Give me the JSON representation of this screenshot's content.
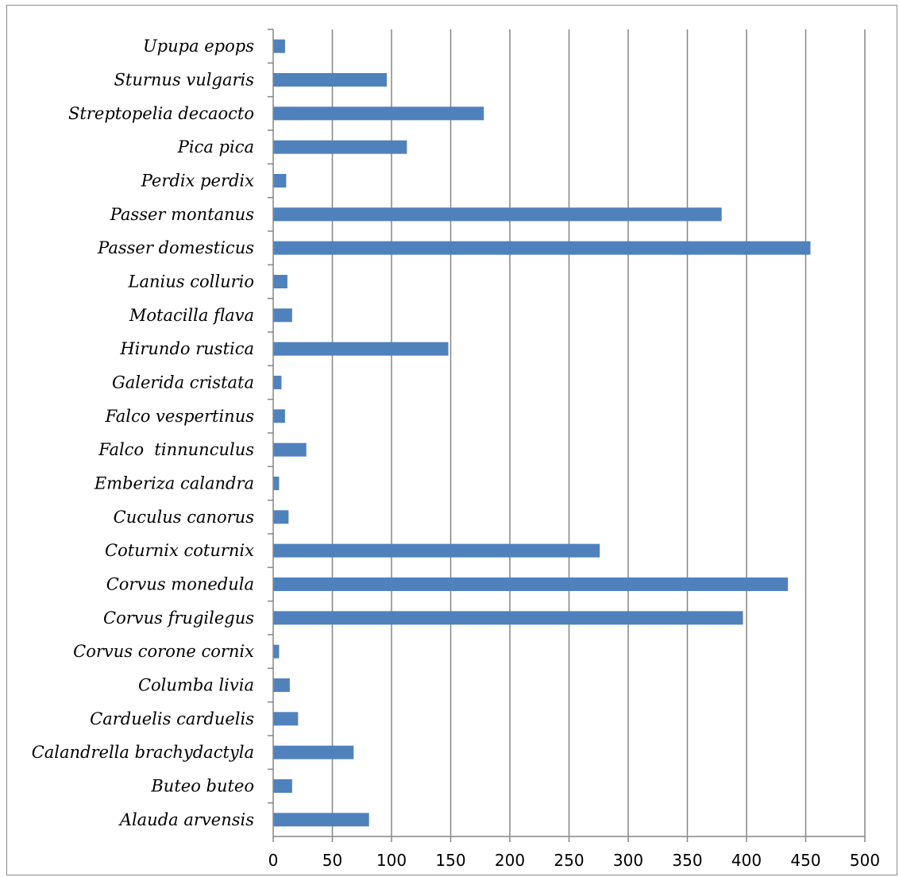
{
  "chart_data": {
    "type": "bar",
    "orientation": "horizontal",
    "title": "",
    "xlabel": "",
    "ylabel": "",
    "xlim": [
      0,
      500
    ],
    "x_ticks": [
      0,
      50,
      100,
      150,
      200,
      250,
      300,
      350,
      400,
      450,
      500
    ],
    "grid": "vertical major gridlines",
    "legend": "none",
    "bar_color": "#4f81bd",
    "categories": [
      "Upupa epops",
      "Sturnus vulgaris",
      "Streptopelia decaocto",
      "Pica pica",
      "Perdix perdix",
      "Passer montanus",
      "Passer domesticus",
      "Lanius collurio",
      "Motacilla flava",
      "Hirundo rustica",
      "Galerida cristata",
      "Falco vespertinus",
      "Falco  tinnunculus",
      "Emberiza calandra",
      "Cuculus canorus",
      "Coturnix coturnix",
      "Corvus monedula",
      "Corvus frugilegus",
      "Corvus corone cornix",
      "Columba livia",
      "Carduelis carduelis",
      "Calandrella brachydactyla",
      "Buteo buteo",
      "Alauda arvensis"
    ],
    "values": [
      10,
      96,
      178,
      113,
      11,
      379,
      454,
      12,
      16,
      148,
      7,
      10,
      28,
      5,
      13,
      276,
      435,
      397,
      5,
      14,
      21,
      68,
      16,
      81
    ]
  }
}
